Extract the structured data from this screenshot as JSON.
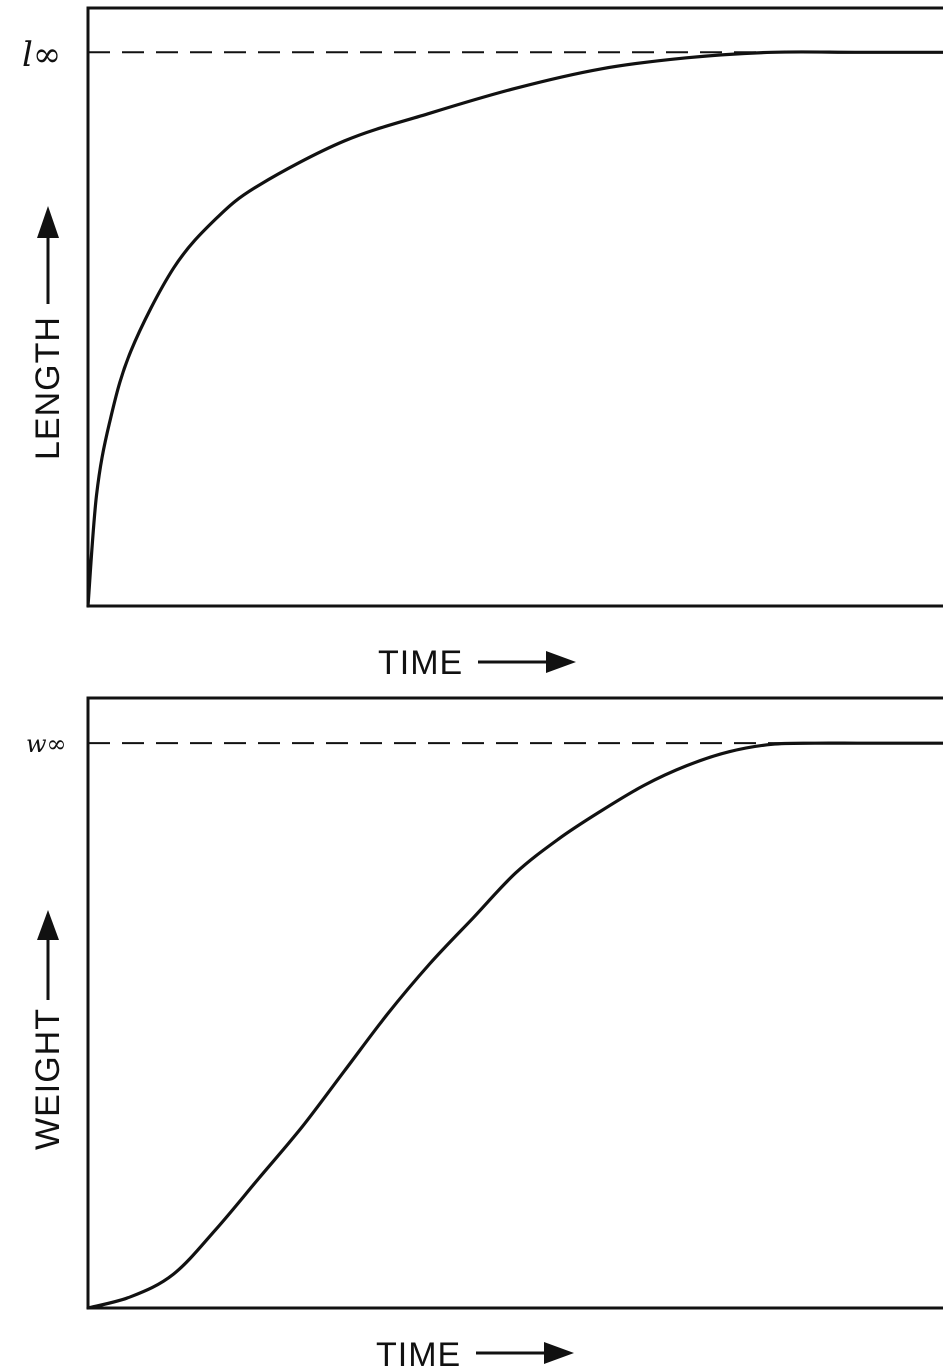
{
  "chart_data": [
    {
      "type": "line",
      "title": "",
      "xlabel": "TIME",
      "ylabel": "LENGTH",
      "asymptote_label": "l∞",
      "asymptote_value": 1.0,
      "xlim": [
        0,
        1
      ],
      "ylim": [
        0,
        1.08
      ],
      "grid": false,
      "x": [
        0,
        0.01,
        0.025,
        0.05,
        0.1,
        0.15,
        0.2,
        0.3,
        0.4,
        0.5,
        0.6,
        0.7,
        0.8,
        0.9,
        1.0
      ],
      "y": [
        0,
        0.2,
        0.33,
        0.46,
        0.61,
        0.7,
        0.76,
        0.84,
        0.89,
        0.935,
        0.97,
        0.99,
        1.0,
        1.0,
        1.0
      ]
    },
    {
      "type": "line",
      "title": "",
      "xlabel": "TIME",
      "ylabel": "WEIGHT",
      "asymptote_label": "w∞",
      "asymptote_value": 1.0,
      "xlim": [
        0,
        1
      ],
      "ylim": [
        0,
        1.08
      ],
      "grid": false,
      "x": [
        0,
        0.05,
        0.1,
        0.15,
        0.2,
        0.25,
        0.3,
        0.35,
        0.4,
        0.45,
        0.5,
        0.55,
        0.6,
        0.65,
        0.7,
        0.75,
        0.8,
        0.85,
        0.9,
        0.95,
        1.0
      ],
      "y": [
        0,
        0.02,
        0.06,
        0.14,
        0.23,
        0.32,
        0.42,
        0.52,
        0.61,
        0.69,
        0.77,
        0.83,
        0.88,
        0.925,
        0.96,
        0.985,
        0.998,
        1.0,
        1.0,
        1.0,
        1.0
      ]
    }
  ]
}
